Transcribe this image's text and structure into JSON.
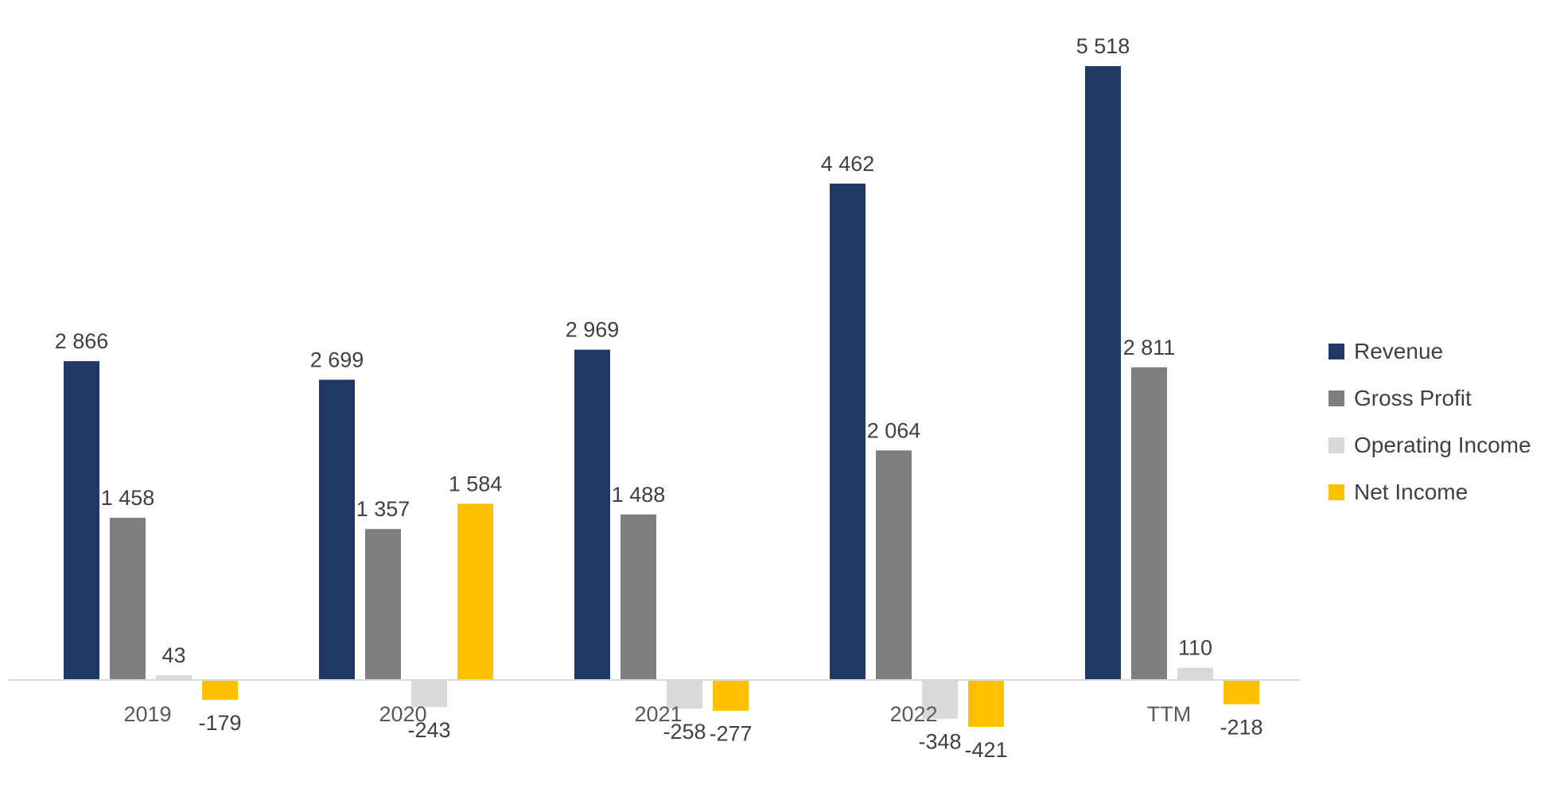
{
  "chart_data": {
    "type": "bar",
    "title": "",
    "xlabel": "",
    "ylabel": "",
    "categories": [
      "2019",
      "2020",
      "2021",
      "2022",
      "TTM"
    ],
    "series": [
      {
        "name": "Revenue",
        "color": "#203864",
        "values": [
          2866,
          2699,
          2969,
          4462,
          5518
        ],
        "labels": [
          "2 866",
          "2 699",
          "2 969",
          "4 462",
          "5 518"
        ]
      },
      {
        "name": "Gross Profit",
        "color": "#7f7f7f",
        "values": [
          1458,
          1357,
          1488,
          2064,
          2811
        ],
        "labels": [
          "1 458",
          "1 357",
          "1 488",
          "2 064",
          "2 811"
        ]
      },
      {
        "name": "Operating Income",
        "color": "#d9d9d9",
        "values": [
          43,
          -243,
          -258,
          -348,
          110
        ],
        "labels": [
          "43",
          "-243",
          "-258",
          "-348",
          "110"
        ]
      },
      {
        "name": "Net Income",
        "color": "#ffc000",
        "values": [
          -179,
          1584,
          -277,
          -421,
          -218
        ],
        "labels": [
          "-179",
          "1 584",
          "-277",
          "-421",
          "-218"
        ]
      }
    ],
    "ylim": [
      -500,
      5800
    ],
    "grid": false,
    "legend": "right"
  }
}
